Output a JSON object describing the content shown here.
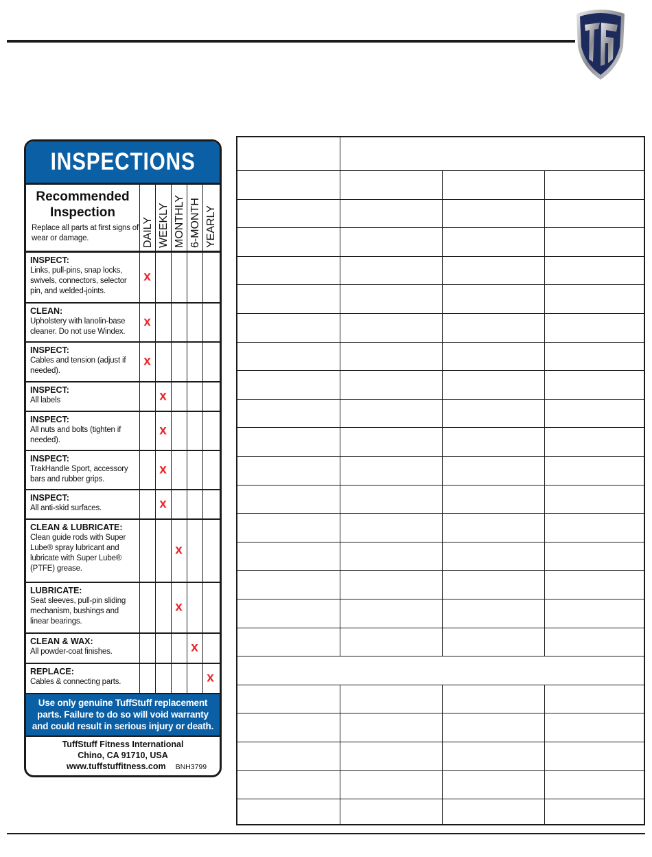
{
  "card": {
    "title": "INSPECTIONS",
    "heading_line1": "Recommended",
    "heading_line2": "Inspection",
    "subheading": "Replace all parts at first signs of wear or damage.",
    "frequencies": [
      "DAILY",
      "WEEKLY",
      "MONTHLY",
      "6-MONTH",
      "YEARLY"
    ],
    "mark": "x",
    "mark_color": "#e8252a",
    "accent_color": "#0b5fa5",
    "rows": [
      {
        "label": "INSPECT:",
        "text": "Links, pull-pins, snap locks, swivels, connectors, selector pin, and welded-joints.",
        "frequency": "DAILY"
      },
      {
        "label": "CLEAN:",
        "text": "Upholstery with lanolin-base cleaner. Do not use Windex.",
        "frequency": "DAILY"
      },
      {
        "label": "INSPECT:",
        "text": "Cables and tension (adjust if needed).",
        "frequency": "DAILY"
      },
      {
        "label": "INSPECT:",
        "text": "All labels",
        "frequency": "WEEKLY"
      },
      {
        "label": "INSPECT:",
        "text": "All nuts and bolts (tighten if needed).",
        "frequency": "WEEKLY"
      },
      {
        "label": "INSPECT:",
        "text": "TrakHandle Sport, accessory bars and rubber grips.",
        "frequency": "WEEKLY"
      },
      {
        "label": "INSPECT:",
        "text": "All anti-skid surfaces.",
        "frequency": "WEEKLY"
      },
      {
        "label": "CLEAN & LUBRICATE:",
        "text": "Clean guide rods with Super Lube® spray lubricant and lubricate with Super Lube® (PTFE) grease.",
        "frequency": "MONTHLY"
      },
      {
        "label": "LUBRICATE:",
        "text": "Seat sleeves, pull-pin sliding mechanism, bushings and linear bearings.",
        "frequency": "MONTHLY"
      },
      {
        "label": "CLEAN & WAX:",
        "text": "All powder-coat finishes.",
        "frequency": "6-MONTH"
      },
      {
        "label": "REPLACE:",
        "text": "Cables & connecting parts.",
        "frequency": "YEARLY"
      }
    ],
    "warning": "Use only genuine TuffStuff replacement parts. Failure to do so will void warranty and could result in serious injury or death.",
    "company": "TuffStuff Fitness International",
    "address": "Chino, CA 91710, USA",
    "website": "www.tuffstuffitness.com",
    "code": "BNH3799"
  },
  "logo": {
    "icon": "tuffstuff-shield-logo",
    "letters": "TF"
  }
}
